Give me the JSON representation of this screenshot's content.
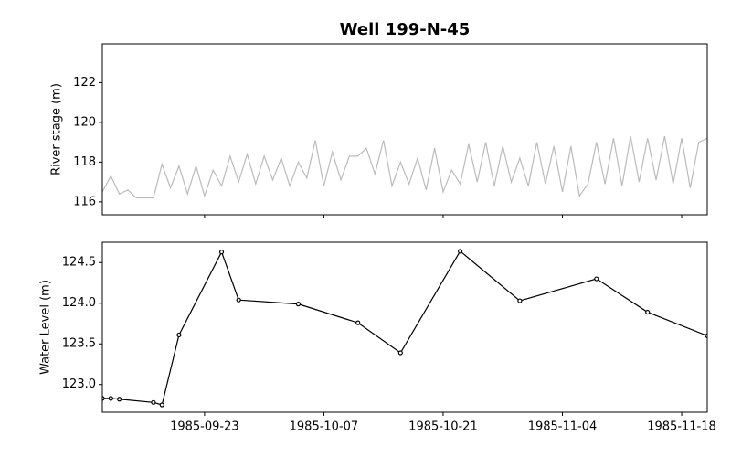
{
  "chart_data": [
    {
      "type": "line",
      "title": "Well 199-N-45",
      "ylabel": "River stage (m)",
      "color": "#bbbbbb",
      "markers": false,
      "x": [
        "1985-09-11",
        "1985-09-12",
        "1985-09-13",
        "1985-09-14",
        "1985-09-15",
        "1985-09-16",
        "1985-09-17",
        "1985-09-18",
        "1985-09-19",
        "1985-09-20",
        "1985-09-21",
        "1985-09-22",
        "1985-09-23",
        "1985-09-24",
        "1985-09-25",
        "1985-09-26",
        "1985-09-27",
        "1985-09-28",
        "1985-09-29",
        "1985-09-30",
        "1985-10-01",
        "1985-10-02",
        "1985-10-03",
        "1985-10-04",
        "1985-10-05",
        "1985-10-06",
        "1985-10-07",
        "1985-10-08",
        "1985-10-09",
        "1985-10-10",
        "1985-10-11",
        "1985-10-12",
        "1985-10-13",
        "1985-10-14",
        "1985-10-15",
        "1985-10-16",
        "1985-10-17",
        "1985-10-18",
        "1985-10-19",
        "1985-10-20",
        "1985-10-21",
        "1985-10-22",
        "1985-10-23",
        "1985-10-24",
        "1985-10-25",
        "1985-10-26",
        "1985-10-27",
        "1985-10-28",
        "1985-10-29",
        "1985-10-30",
        "1985-10-31",
        "1985-11-01",
        "1985-11-02",
        "1985-11-03",
        "1985-11-04",
        "1985-11-05",
        "1985-11-06",
        "1985-11-07",
        "1985-11-08",
        "1985-11-09",
        "1985-11-10",
        "1985-11-11",
        "1985-11-12",
        "1985-11-13",
        "1985-11-14",
        "1985-11-15",
        "1985-11-16",
        "1985-11-17",
        "1985-11-18",
        "1985-11-19",
        "1985-11-20",
        "1985-11-21"
      ],
      "values": [
        116.5,
        117.3,
        116.4,
        116.6,
        116.2,
        116.2,
        116.2,
        117.9,
        116.7,
        117.8,
        116.4,
        117.8,
        116.3,
        117.6,
        116.8,
        118.3,
        117.0,
        118.4,
        116.9,
        118.3,
        117.1,
        118.2,
        116.8,
        118.0,
        117.2,
        119.1,
        116.8,
        118.5,
        117.1,
        118.3,
        118.3,
        118.7,
        117.4,
        119.1,
        116.8,
        118.0,
        116.9,
        118.2,
        116.6,
        118.7,
        116.5,
        117.6,
        116.9,
        118.9,
        117.0,
        119.0,
        116.8,
        118.8,
        117.0,
        118.2,
        116.8,
        119.0,
        116.9,
        118.8,
        116.5,
        118.8,
        116.3,
        116.9,
        119.0,
        116.9,
        119.2,
        116.8,
        119.3,
        117.0,
        119.2,
        117.1,
        119.3,
        116.9,
        119.2,
        116.7,
        119.0,
        119.2
      ],
      "xlim": [
        "1985-09-11",
        "1985-11-21"
      ],
      "xticks": [
        "1985-09-23",
        "1985-10-07",
        "1985-10-21",
        "1985-11-04",
        "1985-11-18"
      ],
      "ylim": [
        115.35,
        123.95
      ],
      "yticks": [
        116,
        118,
        120,
        122
      ]
    },
    {
      "type": "line",
      "ylabel": "Water Level (m)",
      "color": "#000000",
      "markers": true,
      "x": [
        "1985-09-11",
        "1985-09-12",
        "1985-09-13",
        "1985-09-17",
        "1985-09-18",
        "1985-09-20",
        "1985-09-25",
        "1985-09-27",
        "1985-10-04",
        "1985-10-11",
        "1985-10-16",
        "1985-10-23",
        "1985-10-30",
        "1985-11-08",
        "1985-11-14",
        "1985-11-21"
      ],
      "values": [
        122.83,
        122.83,
        122.82,
        122.78,
        122.75,
        123.61,
        124.63,
        124.04,
        123.99,
        123.76,
        123.39,
        124.64,
        124.03,
        124.3,
        123.89,
        123.6
      ],
      "xlim": [
        "1985-09-11",
        "1985-11-21"
      ],
      "xticks": [
        "1985-09-23",
        "1985-10-07",
        "1985-10-21",
        "1985-11-04",
        "1985-11-18"
      ],
      "ylim": [
        122.66,
        124.75
      ],
      "yticks": [
        {
          "value": 123.0,
          "label": "123.0"
        },
        {
          "value": 123.5,
          "label": "123.5"
        },
        {
          "value": 124.0,
          "label": "124.0"
        },
        {
          "value": 124.5,
          "label": "124.5"
        }
      ]
    }
  ]
}
